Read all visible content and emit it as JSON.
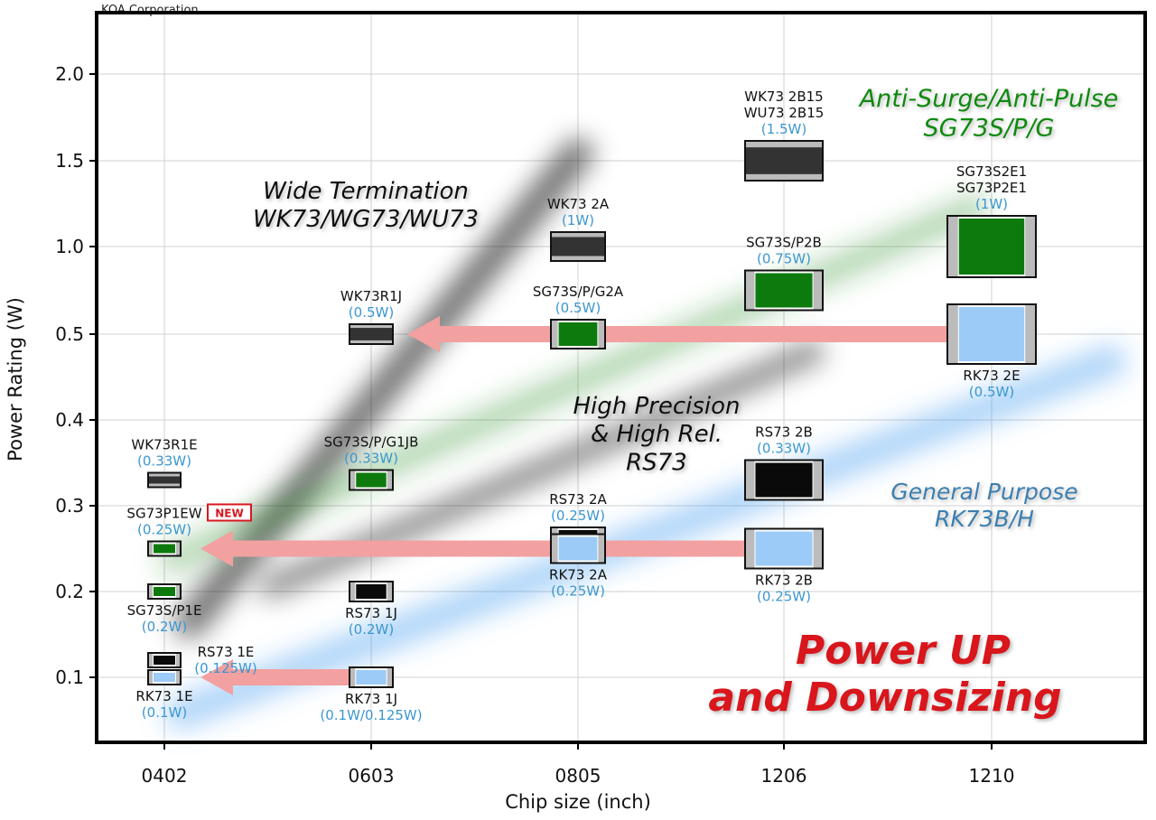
{
  "header": {
    "company": "KOA Corporation"
  },
  "chart_data": {
    "type": "scatter",
    "xlabel": "Chip size (inch)",
    "ylabel": "Power Rating (W)",
    "categories": [
      "0402",
      "0603",
      "0805",
      "1206",
      "1210"
    ],
    "yticks": [
      "0.1",
      "0.2",
      "0.3",
      "0.4",
      "0.5",
      "1.0",
      "1.5",
      "2.0"
    ],
    "grid": true,
    "colors": {
      "black": "#0a0a0a",
      "dark": "#333333",
      "green": "#0d7a0d",
      "blue": "#9ccbf7",
      "power": "#3b97cf",
      "arrow": "#f2a0a0",
      "red": "#d8181f"
    },
    "points": [
      {
        "names": [
          "WK73R1E"
        ],
        "power": "(0.33W)",
        "x": "0402",
        "y": 0.33,
        "kind": "dark",
        "label": "above"
      },
      {
        "names": [
          "SG73P1EW"
        ],
        "power": "(0.25W)",
        "x": "0402",
        "y": 0.25,
        "kind": "green",
        "label": "above",
        "badge": "NEW"
      },
      {
        "names": [
          "SG73S/P1E"
        ],
        "power": "(0.2W)",
        "x": "0402",
        "y": 0.2,
        "kind": "green",
        "label": "below"
      },
      {
        "names": [
          "RS73 1E"
        ],
        "power": "(0.125W)",
        "x": "0402",
        "y": 0.12,
        "kind": "black",
        "label": "right"
      },
      {
        "names": [
          "RK73 1E"
        ],
        "power": "(0.1W)",
        "x": "0402",
        "y": 0.1,
        "kind": "blue",
        "label": "below"
      },
      {
        "names": [
          "WK73R1J"
        ],
        "power": "(0.5W)",
        "x": "0603",
        "y": 0.5,
        "kind": "dark",
        "label": "above"
      },
      {
        "names": [
          "SG73S/P/G1JB"
        ],
        "power": "(0.33W)",
        "x": "0603",
        "y": 0.33,
        "kind": "green",
        "label": "above"
      },
      {
        "names": [
          "RS73 1J"
        ],
        "power": "(0.2W)",
        "x": "0603",
        "y": 0.2,
        "kind": "black",
        "label": "below"
      },
      {
        "names": [
          "RK73 1J"
        ],
        "power": "(0.1W/0.125W)",
        "x": "0603",
        "y": 0.1,
        "kind": "blue",
        "label": "below"
      },
      {
        "names": [
          "WK73 2A"
        ],
        "power": "(1W)",
        "x": "0805",
        "y": 1.0,
        "kind": "dark",
        "label": "above"
      },
      {
        "names": [
          "SG73S/P/G2A"
        ],
        "power": "(0.5W)",
        "x": "0805",
        "y": 0.5,
        "kind": "green",
        "label": "above"
      },
      {
        "names": [
          "RS73 2A"
        ],
        "power": "(0.25W)",
        "x": "0805",
        "y": 0.26,
        "kind": "black",
        "label": "above"
      },
      {
        "names": [
          "RK73 2A"
        ],
        "power": "(0.25W)",
        "x": "0805",
        "y": 0.25,
        "kind": "blue",
        "label": "below"
      },
      {
        "names": [
          "WK73 2B15",
          "WU73 2B15"
        ],
        "power": "(1.5W)",
        "x": "1206",
        "y": 1.5,
        "kind": "dark",
        "label": "above"
      },
      {
        "names": [
          "SG73S/P2B"
        ],
        "power": "(0.75W)",
        "x": "1206",
        "y": 0.75,
        "kind": "green",
        "label": "above"
      },
      {
        "names": [
          "RS73 2B"
        ],
        "power": "(0.33W)",
        "x": "1206",
        "y": 0.33,
        "kind": "black",
        "label": "above"
      },
      {
        "names": [
          "RK73 2B"
        ],
        "power": "(0.25W)",
        "x": "1206",
        "y": 0.25,
        "kind": "blue",
        "label": "below"
      },
      {
        "names": [
          "SG73S2E1",
          "SG73P2E1"
        ],
        "power": "(1W)",
        "x": "1210",
        "y": 1.0,
        "kind": "green",
        "label": "above"
      },
      {
        "names": [
          "RK73 2E"
        ],
        "power": "(0.5W)",
        "x": "1210",
        "y": 0.5,
        "kind": "blue",
        "label": "below"
      }
    ],
    "arrows": [
      {
        "from": "1210",
        "to": "0603",
        "y": 0.5
      },
      {
        "from": "1206",
        "to": "0402",
        "y": 0.25
      },
      {
        "from": "0603",
        "to": "0402",
        "y": 0.1
      }
    ],
    "series_labels": [
      {
        "lines": [
          "Wide Termination",
          "WK73/WG73/WU73"
        ],
        "color": "#111111"
      },
      {
        "lines": [
          "Anti-Surge/Anti-Pulse",
          "SG73S/P/G"
        ],
        "color": "#0d8a0d"
      },
      {
        "lines": [
          "High Precision",
          "& High Rel.",
          "RS73"
        ],
        "color": "#111111"
      },
      {
        "lines": [
          "General Purpose",
          "RK73B/H"
        ],
        "color": "#3a7fb0"
      }
    ],
    "headline": [
      "Power UP",
      "and Downsizing"
    ]
  }
}
